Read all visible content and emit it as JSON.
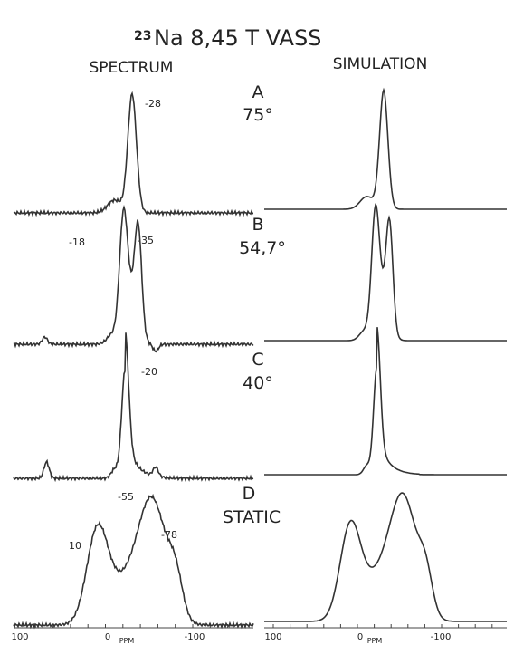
{
  "title": {
    "isotope": "23",
    "text": "Na 8,45 T VASS"
  },
  "columns": [
    "SPECTRUM",
    "SIMULATION"
  ],
  "panels": [
    {
      "letter": "A",
      "angle": "75°",
      "peaks": [
        "-28"
      ]
    },
    {
      "letter": "B",
      "angle": "54,7°",
      "peaks": [
        "-18",
        "-35"
      ]
    },
    {
      "letter": "C",
      "angle": "40°",
      "peaks": [
        "-20"
      ]
    },
    {
      "letter": "D",
      "angle": "STATIC",
      "peaks": [
        "10",
        "-55",
        "-78"
      ]
    }
  ],
  "axes": [
    {
      "ticks": [
        "100",
        "0",
        "-100"
      ],
      "unit": "PPM"
    },
    {
      "ticks": [
        "100",
        "0",
        "-100"
      ],
      "unit": "PPM"
    }
  ]
}
